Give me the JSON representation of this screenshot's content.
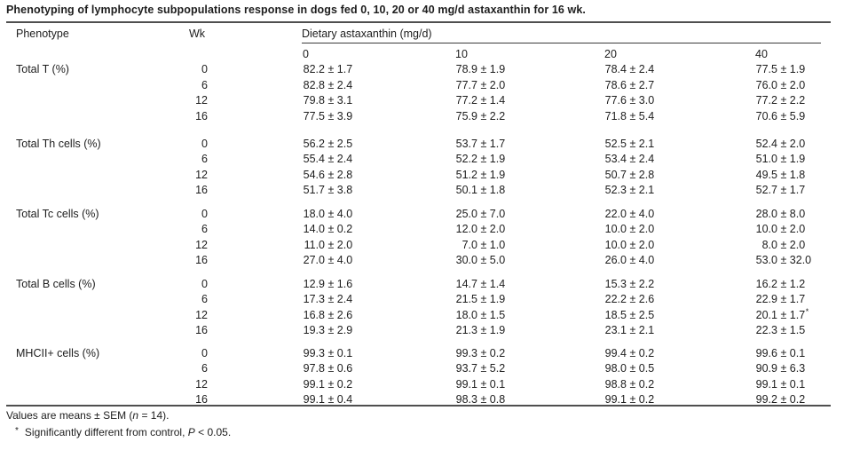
{
  "page": {
    "background_color": "#ffffff",
    "text_color": "#1d1d1d",
    "rule_color": "#4f4f4f"
  },
  "title": "Phenotyping of lymphocyte subpopulations response in dogs fed 0, 10, 20 or 40 mg/d astaxanthin for 16 wk.",
  "table": {
    "headers": {
      "phenotype": "Phenotype",
      "wk": "Wk",
      "diet": "Dietary astaxanthin (mg/d)"
    },
    "doses": [
      "0",
      "10",
      "20",
      "40"
    ],
    "pm_symbol": "±",
    "groups": [
      {
        "phenotype": "Total T (%)",
        "rows": [
          {
            "wk": "0",
            "values": [
              {
                "mean": "82.2",
                "sem": "1.7"
              },
              {
                "mean": "78.9",
                "sem": "1.9"
              },
              {
                "mean": "78.4",
                "sem": "2.4"
              },
              {
                "mean": "77.5",
                "sem": "1.9"
              }
            ]
          },
          {
            "wk": "6",
            "values": [
              {
                "mean": "82.8",
                "sem": "2.4"
              },
              {
                "mean": "77.7",
                "sem": "2.0"
              },
              {
                "mean": "78.6",
                "sem": "2.7"
              },
              {
                "mean": "76.0",
                "sem": "2.0"
              }
            ]
          },
          {
            "wk": "12",
            "values": [
              {
                "mean": "79.8",
                "sem": "3.1"
              },
              {
                "mean": "77.2",
                "sem": "1.4"
              },
              {
                "mean": "77.6",
                "sem": "3.0"
              },
              {
                "mean": "77.2",
                "sem": "2.2"
              }
            ]
          },
          {
            "wk": "16",
            "values": [
              {
                "mean": "77.5",
                "sem": "3.9"
              },
              {
                "mean": "75.9",
                "sem": "2.2"
              },
              {
                "mean": "71.8",
                "sem": "5.4"
              },
              {
                "mean": "70.6",
                "sem": "5.9"
              }
            ]
          }
        ]
      },
      {
        "phenotype": "Total Th cells (%)",
        "rows": [
          {
            "wk": "0",
            "values": [
              {
                "mean": "56.2",
                "sem": "2.5"
              },
              {
                "mean": "53.7",
                "sem": "1.7"
              },
              {
                "mean": "52.5",
                "sem": "2.1"
              },
              {
                "mean": "52.4",
                "sem": "2.0"
              }
            ]
          },
          {
            "wk": "6",
            "values": [
              {
                "mean": "55.4",
                "sem": "2.4"
              },
              {
                "mean": "52.2",
                "sem": "1.9"
              },
              {
                "mean": "53.4",
                "sem": "2.4"
              },
              {
                "mean": "51.0",
                "sem": "1.9"
              }
            ]
          },
          {
            "wk": "12",
            "values": [
              {
                "mean": "54.6",
                "sem": "2.8"
              },
              {
                "mean": "51.2",
                "sem": "1.9"
              },
              {
                "mean": "50.7",
                "sem": "2.8"
              },
              {
                "mean": "49.5",
                "sem": "1.8"
              }
            ]
          },
          {
            "wk": "16",
            "values": [
              {
                "mean": "51.7",
                "sem": "3.8"
              },
              {
                "mean": "50.1",
                "sem": "1.8"
              },
              {
                "mean": "52.3",
                "sem": "2.1"
              },
              {
                "mean": "52.7",
                "sem": "1.7"
              }
            ]
          }
        ]
      },
      {
        "phenotype": "Total Tc cells (%)",
        "rows": [
          {
            "wk": "0",
            "values": [
              {
                "mean": "18.0",
                "sem": "4.0"
              },
              {
                "mean": "25.0",
                "sem": "7.0"
              },
              {
                "mean": "22.0",
                "sem": "4.0"
              },
              {
                "mean": "28.0",
                "sem": "8.0"
              }
            ]
          },
          {
            "wk": "6",
            "values": [
              {
                "mean": "14.0",
                "sem": "0.2"
              },
              {
                "mean": "12.0",
                "sem": "2.0"
              },
              {
                "mean": "10.0",
                "sem": "2.0"
              },
              {
                "mean": "10.0",
                "sem": "2.0"
              }
            ]
          },
          {
            "wk": "12",
            "values": [
              {
                "mean": "11.0",
                "sem": "2.0"
              },
              {
                "mean": "7.0",
                "sem": "1.0"
              },
              {
                "mean": "10.0",
                "sem": "2.0"
              },
              {
                "mean": "8.0",
                "sem": "2.0"
              }
            ]
          },
          {
            "wk": "16",
            "values": [
              {
                "mean": "27.0",
                "sem": "4.0"
              },
              {
                "mean": "30.0",
                "sem": "5.0"
              },
              {
                "mean": "26.0",
                "sem": "4.0"
              },
              {
                "mean": "53.0",
                "sem": "32.0"
              }
            ]
          }
        ]
      },
      {
        "phenotype": "Total B cells (%)",
        "rows": [
          {
            "wk": "0",
            "values": [
              {
                "mean": "12.9",
                "sem": "1.6"
              },
              {
                "mean": "14.7",
                "sem": "1.4"
              },
              {
                "mean": "15.3",
                "sem": "2.2"
              },
              {
                "mean": "16.2",
                "sem": "1.2"
              }
            ]
          },
          {
            "wk": "6",
            "values": [
              {
                "mean": "17.3",
                "sem": "2.4"
              },
              {
                "mean": "21.5",
                "sem": "1.9"
              },
              {
                "mean": "22.2",
                "sem": "2.6"
              },
              {
                "mean": "22.9",
                "sem": "1.7"
              }
            ]
          },
          {
            "wk": "12",
            "values": [
              {
                "mean": "16.8",
                "sem": "2.6"
              },
              {
                "mean": "18.0",
                "sem": "1.5"
              },
              {
                "mean": "18.5",
                "sem": "2.5"
              },
              {
                "mean": "20.1",
                "sem": "1.7",
                "mark": "*"
              }
            ]
          },
          {
            "wk": "16",
            "values": [
              {
                "mean": "19.3",
                "sem": "2.9"
              },
              {
                "mean": "21.3",
                "sem": "1.9"
              },
              {
                "mean": "23.1",
                "sem": "2.1"
              },
              {
                "mean": "22.3",
                "sem": "1.5"
              }
            ]
          }
        ]
      },
      {
        "phenotype": "MHCII+ cells (%)",
        "rows": [
          {
            "wk": "0",
            "values": [
              {
                "mean": "99.3",
                "sem": "0.1"
              },
              {
                "mean": "99.3",
                "sem": "0.2"
              },
              {
                "mean": "99.4",
                "sem": "0.2"
              },
              {
                "mean": "99.6",
                "sem": "0.1"
              }
            ]
          },
          {
            "wk": "6",
            "values": [
              {
                "mean": "97.8",
                "sem": "0.6"
              },
              {
                "mean": "93.7",
                "sem": "5.2"
              },
              {
                "mean": "98.0",
                "sem": "0.5"
              },
              {
                "mean": "90.9",
                "sem": "6.3"
              }
            ]
          },
          {
            "wk": "12",
            "values": [
              {
                "mean": "99.1",
                "sem": "0.2"
              },
              {
                "mean": "99.1",
                "sem": "0.1"
              },
              {
                "mean": "98.8",
                "sem": "0.2"
              },
              {
                "mean": "99.1",
                "sem": "0.1"
              }
            ]
          },
          {
            "wk": "16",
            "values": [
              {
                "mean": "99.1",
                "sem": "0.4"
              },
              {
                "mean": "98.3",
                "sem": "0.8"
              },
              {
                "mean": "99.1",
                "sem": "0.2"
              },
              {
                "mean": "99.2",
                "sem": "0.2"
              }
            ]
          }
        ]
      }
    ]
  },
  "footnotes": {
    "line1": {
      "pre": "Values are means ± SEM (",
      "var": "n",
      "post": " = 14)."
    },
    "line2": {
      "marker": "*",
      "pre": "Significantly different from control, ",
      "var": "P",
      "post": " < 0.05."
    }
  }
}
